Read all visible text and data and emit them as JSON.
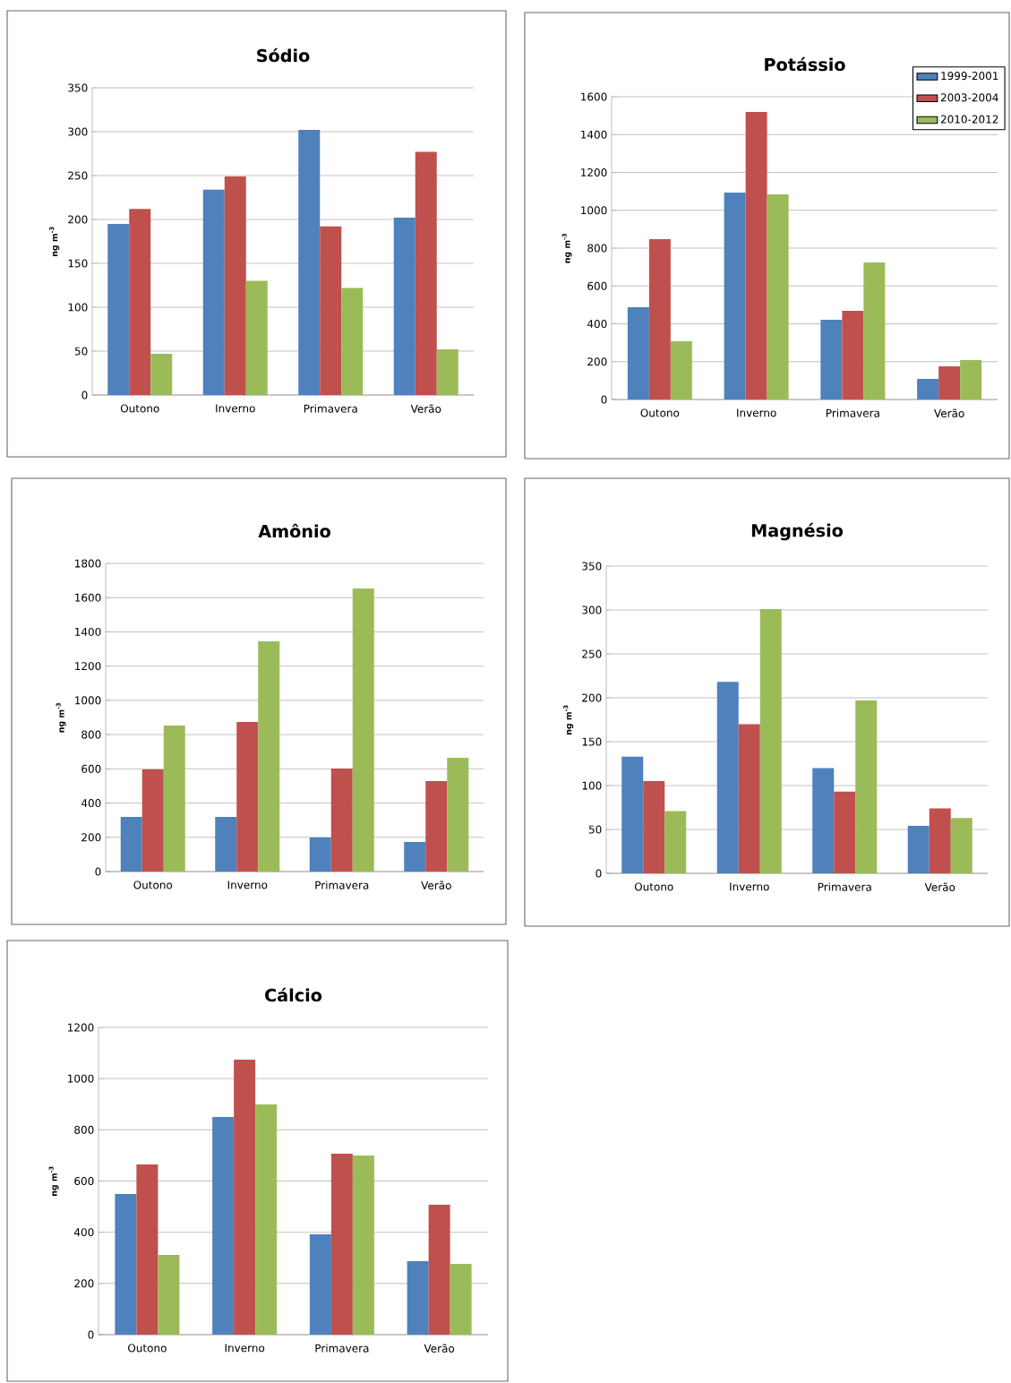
{
  "chart_data": [
    {
      "type": "bar",
      "title": "Sódio",
      "ylabel": "ng m$^{-3}$",
      "categories": [
        "Outono",
        "Inverno",
        "Primavera",
        "Verão"
      ],
      "ylim": [
        0,
        350
      ],
      "yticks": [
        0,
        50,
        100,
        150,
        200,
        250,
        300,
        350
      ],
      "grid": "y",
      "series": [
        {
          "color": "#4f81bd",
          "values": [
            195,
            234,
            302,
            202
          ]
        },
        {
          "color": "#c0504d",
          "values": [
            212,
            249,
            192,
            277
          ]
        },
        {
          "color": "#9bbb59",
          "values": [
            47,
            130,
            122,
            52
          ]
        }
      ]
    },
    {
      "type": "bar",
      "title": "Potássio",
      "ylabel": "ng m$^{-3}$",
      "categories": [
        "Outono",
        "Inverno",
        "Primavera",
        "Verão"
      ],
      "ylim": [
        0,
        1600
      ],
      "yticks": [
        0,
        200,
        400,
        600,
        800,
        1000,
        1200,
        1400,
        1600
      ],
      "grid": "y",
      "legend": "top right",
      "series": [
        {
          "name": "1999-2001",
          "color": "#4f81bd",
          "values": [
            487,
            1093,
            421,
            109
          ]
        },
        {
          "name": "2003-2004",
          "color": "#c0504d",
          "values": [
            847,
            1519,
            469,
            175
          ]
        },
        {
          "name": "2010-2012",
          "color": "#9bbb59",
          "values": [
            308,
            1084,
            724,
            208
          ]
        }
      ]
    },
    {
      "type": "bar",
      "title": "Amônio",
      "ylabel": "ng m$^{-3}$",
      "categories": [
        "Outono",
        "Inverno",
        "Primavera",
        "Verão"
      ],
      "ylim": [
        0,
        1800
      ],
      "yticks": [
        0,
        200,
        400,
        600,
        800,
        1000,
        1200,
        1400,
        1600,
        1800
      ],
      "grid": "y",
      "series": [
        {
          "color": "#4f81bd",
          "values": [
            319,
            319,
            199,
            173
          ]
        },
        {
          "color": "#c0504d",
          "values": [
            597,
            874,
            602,
            528
          ]
        },
        {
          "color": "#9bbb59",
          "values": [
            853,
            1345,
            1654,
            665
          ]
        }
      ]
    },
    {
      "type": "bar",
      "title": "Magnésio",
      "ylabel": "ng m$^{-3}$",
      "categories": [
        "Outono",
        "Inverno",
        "Primavera",
        "Verão"
      ],
      "ylim": [
        0,
        350
      ],
      "yticks": [
        0,
        50,
        100,
        150,
        200,
        250,
        300,
        350
      ],
      "grid": "y",
      "series": [
        {
          "color": "#4f81bd",
          "values": [
            133,
            218,
            120,
            54
          ]
        },
        {
          "color": "#c0504d",
          "values": [
            105,
            170,
            93,
            74
          ]
        },
        {
          "color": "#9bbb59",
          "values": [
            71,
            301,
            197,
            63
          ]
        }
      ]
    },
    {
      "type": "bar",
      "title": "Cálcio",
      "ylabel": "ng m$^{-3}$",
      "categories": [
        "Outono",
        "Inverno",
        "Primavera",
        "Verão"
      ],
      "ylim": [
        0,
        1200
      ],
      "yticks": [
        0,
        200,
        400,
        600,
        800,
        1000,
        1200
      ],
      "grid": "y",
      "series": [
        {
          "color": "#4f81bd",
          "values": [
            549,
            850,
            392,
            287
          ]
        },
        {
          "color": "#c0504d",
          "values": [
            665,
            1074,
            707,
            507
          ]
        },
        {
          "color": "#9bbb59",
          "values": [
            311,
            899,
            700,
            276
          ]
        }
      ]
    }
  ]
}
